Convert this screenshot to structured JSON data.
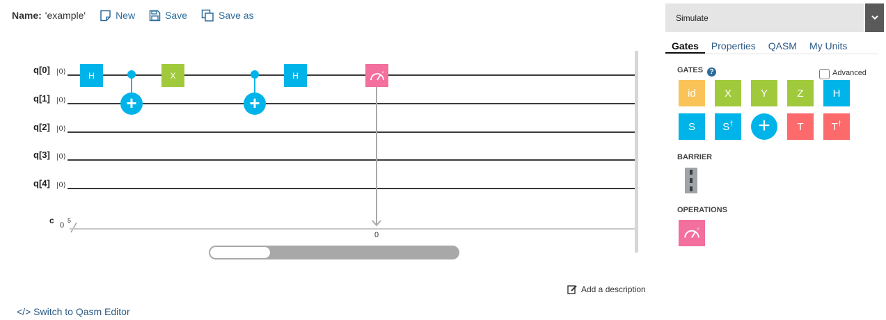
{
  "toolbar": {
    "name_label": "Name:",
    "name_value": "'example'",
    "new_label": "New",
    "save_label": "Save",
    "save_as_label": "Save as"
  },
  "circuit": {
    "qubits": [
      "q[0]",
      "q[1]",
      "q[2]",
      "q[3]",
      "q[4]"
    ],
    "ket": "|0⟩",
    "classical_label": "c",
    "classical_init": "0",
    "classical_width": "5",
    "gates": {
      "h1": "H",
      "x1": "X",
      "h2": "H",
      "cnot1_target": "+",
      "cnot2_target": "+"
    },
    "measure_bit": "0"
  },
  "links": {
    "add_description": "Add a description",
    "switch_editor": "</> Switch to Qasm Editor"
  },
  "panel": {
    "simulate": "Simulate",
    "tabs": [
      "Gates",
      "Properties",
      "QASM",
      "My Units"
    ],
    "gates_title": "GATES",
    "help": "?",
    "advanced": "Advanced",
    "gate_palette": {
      "id": "id",
      "x": "X",
      "y": "Y",
      "z": "Z",
      "h": "H",
      "s": "S",
      "sdg": "S",
      "sdg_sup": "†",
      "cnot": "+",
      "t": "T",
      "tdg": "T",
      "tdg_sup": "†"
    },
    "barrier_title": "BARRIER",
    "operations_title": "OPERATIONS"
  },
  "colors": {
    "gate_blue": "#00b4ea",
    "gate_green": "#a0ca3c",
    "gate_yellow": "#fac358",
    "gate_red": "#fc6a6c",
    "gate_pink": "#f36f9e",
    "link_blue": "#2b6c9a"
  },
  "icons": {
    "new": "new-file-icon",
    "save": "floppy-disk-icon",
    "save_as": "copy-icon",
    "measure": "gauge-icon",
    "edit": "edit-icon",
    "caret": "chevron-down-icon"
  }
}
